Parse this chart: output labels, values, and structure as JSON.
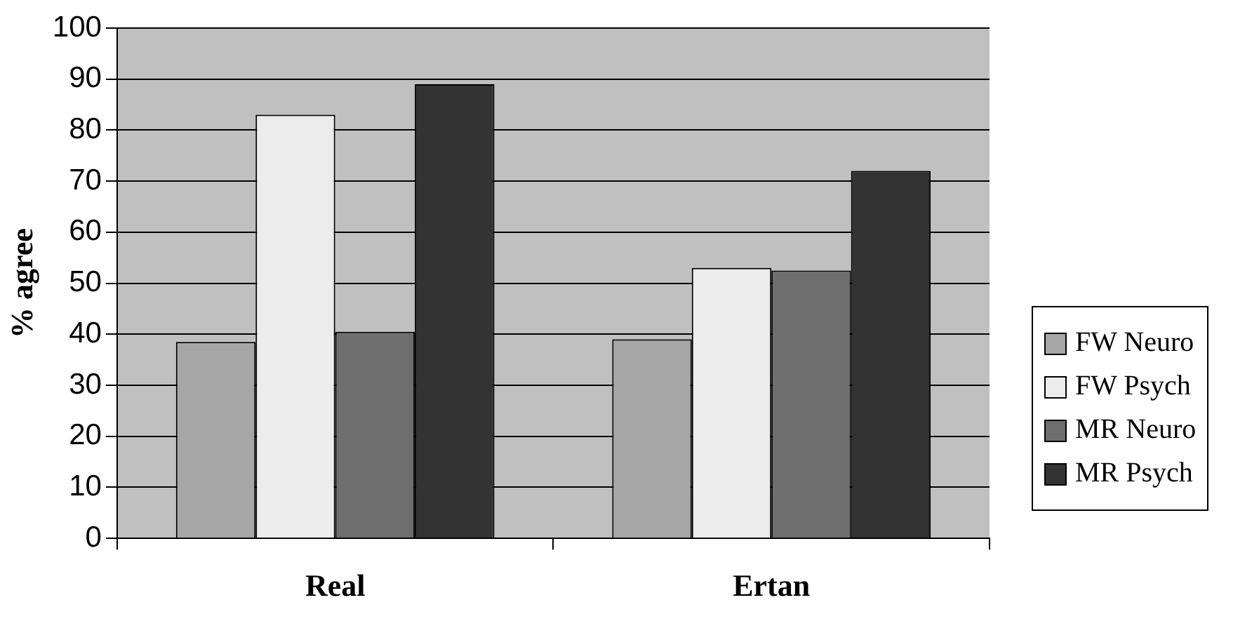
{
  "chart_data": {
    "type": "bar",
    "ylabel": "% agree",
    "categories": [
      "Real",
      "Ertan"
    ],
    "series": [
      {
        "name": "FW Neuro",
        "color": "#a6a6a6",
        "values": [
          38.5,
          39
        ]
      },
      {
        "name": "FW Psych",
        "color": "#ececec",
        "values": [
          83,
          53
        ]
      },
      {
        "name": "MR Neuro",
        "color": "#6e6e6e",
        "values": [
          40.5,
          52.5
        ]
      },
      {
        "name": "MR Psych",
        "color": "#333333",
        "values": [
          89,
          72
        ]
      }
    ],
    "ylim": [
      0,
      100
    ],
    "yticks": [
      0,
      10,
      20,
      30,
      40,
      50,
      60,
      70,
      80,
      90,
      100
    ],
    "grid": "y",
    "legend": "right"
  }
}
